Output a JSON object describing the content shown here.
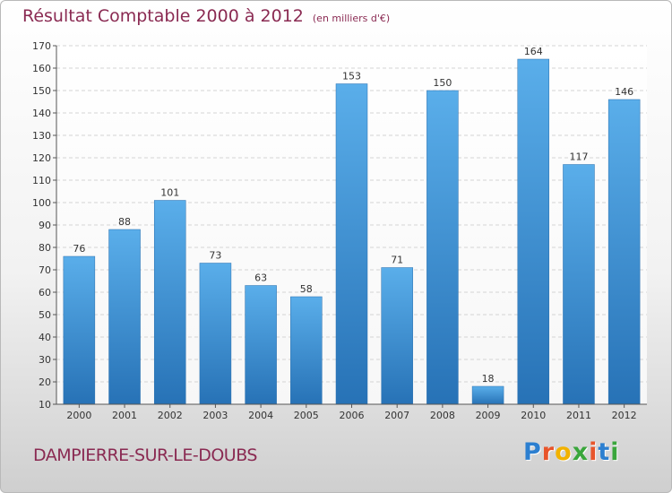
{
  "header": {
    "title": "Résultat Comptable 2000 à 2012",
    "subtitle": "(en milliers d'€)"
  },
  "footer": {
    "town": "DAMPIERRE-SUR-LE-DOUBS",
    "logo_letters": [
      "P",
      "r",
      "o",
      "x",
      "i",
      "t",
      "i"
    ],
    "logo_colors": [
      "#2c7fd0",
      "#e8552b",
      "#f2b200",
      "#3aa63c",
      "#e8552b",
      "#2c7fd0",
      "#3aa63c"
    ]
  },
  "chart_data": {
    "type": "bar",
    "title": "Résultat Comptable 2000 à 2012",
    "subtitle": "(en milliers d'€)",
    "categories": [
      "2000",
      "2001",
      "2002",
      "2003",
      "2004",
      "2005",
      "2006",
      "2007",
      "2008",
      "2009",
      "2010",
      "2011",
      "2012"
    ],
    "values": [
      76,
      88,
      101,
      73,
      63,
      58,
      153,
      71,
      150,
      18,
      164,
      117,
      146
    ],
    "ylim": [
      10,
      170
    ],
    "yticks": [
      10,
      20,
      30,
      40,
      50,
      60,
      70,
      80,
      90,
      100,
      110,
      120,
      130,
      140,
      150,
      160,
      170
    ],
    "grid": true,
    "bar_color": "#3d8fd6",
    "data_labels": true
  }
}
